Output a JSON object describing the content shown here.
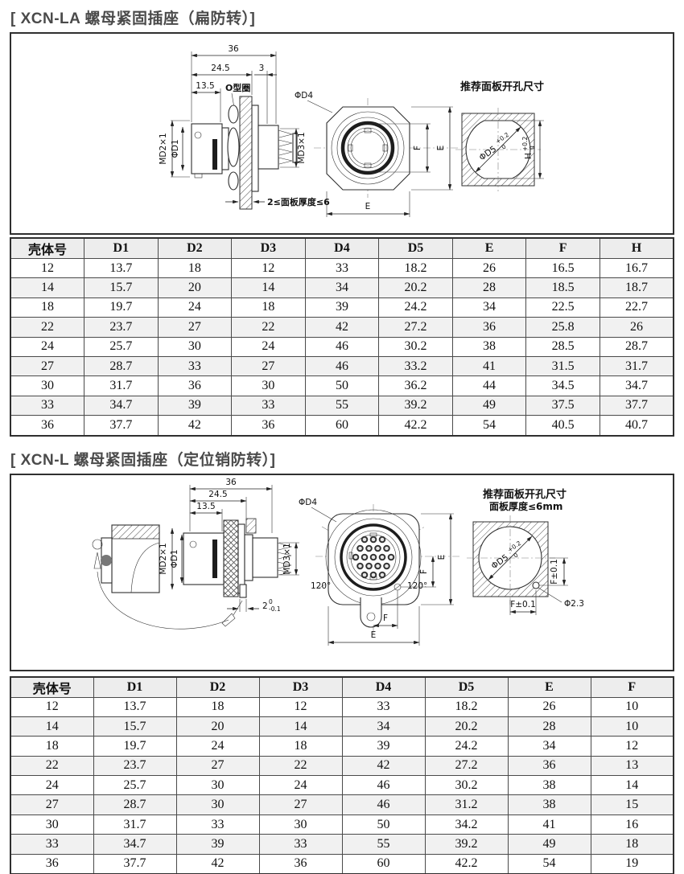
{
  "meta": {
    "page_bg": "#ffffff",
    "line_color": "#2f2f2f",
    "title_color": "#4a4a4a",
    "table_header_bg": "#ededed",
    "table_alt_row_bg": "#f1f1f1"
  },
  "section1": {
    "title": "[ XCN-LA 螺母紧固插座（扁防转）]",
    "side": {
      "dim36": "36",
      "dim245": "24.5",
      "dim3": "3",
      "dim135": "13.5",
      "oring": "O型圈",
      "md2": "MD2×1",
      "d1": "ΦD1",
      "md3": "MD3×1",
      "panel_note": "2≤面板厚度≤6"
    },
    "front": {
      "d4": "ΦD4",
      "f": "F",
      "e_side": "E",
      "e_bottom": "E"
    },
    "cutout": {
      "title": "推荐面板开孔尺寸",
      "d5": "ΦD5",
      "d5_sup": "+0.2",
      "d5_sub": "0",
      "h": "H",
      "h_sup": "+0.2",
      "h_sub": "0"
    },
    "table": {
      "headers": [
        "壳体号",
        "D1",
        "D2",
        "D3",
        "D4",
        "D5",
        "E",
        "F",
        "H"
      ],
      "rows": [
        [
          "12",
          "13.7",
          "18",
          "12",
          "33",
          "18.2",
          "26",
          "16.5",
          "16.7"
        ],
        [
          "14",
          "15.7",
          "20",
          "14",
          "34",
          "20.2",
          "28",
          "18.5",
          "18.7"
        ],
        [
          "18",
          "19.7",
          "24",
          "18",
          "39",
          "24.2",
          "34",
          "22.5",
          "22.7"
        ],
        [
          "22",
          "23.7",
          "27",
          "22",
          "42",
          "27.2",
          "36",
          "25.8",
          "26"
        ],
        [
          "24",
          "25.7",
          "30",
          "24",
          "46",
          "30.2",
          "38",
          "28.5",
          "28.7"
        ],
        [
          "27",
          "28.7",
          "33",
          "27",
          "46",
          "33.2",
          "41",
          "31.5",
          "31.7"
        ],
        [
          "30",
          "31.7",
          "36",
          "30",
          "50",
          "36.2",
          "44",
          "34.5",
          "34.7"
        ],
        [
          "33",
          "34.7",
          "39",
          "33",
          "55",
          "39.2",
          "49",
          "37.5",
          "37.7"
        ],
        [
          "36",
          "37.7",
          "42",
          "36",
          "60",
          "42.2",
          "54",
          "40.5",
          "40.7"
        ]
      ]
    }
  },
  "section2": {
    "title": "[ XCN-L 螺母紧固插座（定位销防转）]",
    "side": {
      "dim36": "36",
      "dim245": "24.5",
      "dim135": "13.5",
      "md2": "MD2×1",
      "d1": "ΦD1",
      "md3": "MD3×1",
      "pin": "2",
      "pin_sup": "0",
      "pin_sub": "-0.1"
    },
    "front": {
      "d4": "ΦD4",
      "angle_l": "120°",
      "angle_r": "120°",
      "e_side": "E",
      "f_side": "F",
      "f_bottom": "F",
      "e_bottom": "E"
    },
    "cutout": {
      "title1": "推荐面板开孔尺寸",
      "title2": "面板厚度≤6mm",
      "d5": "ΦD5",
      "d5_sup": "+0.2",
      "d5_sub": "0",
      "f_v": "F±0.1",
      "f_h": "F±0.1",
      "hole": "Φ2.3"
    },
    "table": {
      "headers": [
        "壳体号",
        "D1",
        "D2",
        "D3",
        "D4",
        "D5",
        "E",
        "F"
      ],
      "rows": [
        [
          "12",
          "13.7",
          "18",
          "12",
          "33",
          "18.2",
          "26",
          "10"
        ],
        [
          "14",
          "15.7",
          "20",
          "14",
          "34",
          "20.2",
          "28",
          "10"
        ],
        [
          "18",
          "19.7",
          "24",
          "18",
          "39",
          "24.2",
          "34",
          "12"
        ],
        [
          "22",
          "23.7",
          "27",
          "22",
          "42",
          "27.2",
          "36",
          "13"
        ],
        [
          "24",
          "25.7",
          "30",
          "24",
          "46",
          "30.2",
          "38",
          "14"
        ],
        [
          "27",
          "28.7",
          "30",
          "27",
          "46",
          "31.2",
          "38",
          "15"
        ],
        [
          "30",
          "31.7",
          "33",
          "30",
          "50",
          "34.2",
          "41",
          "16"
        ],
        [
          "33",
          "34.7",
          "39",
          "33",
          "55",
          "39.2",
          "49",
          "18"
        ],
        [
          "36",
          "37.7",
          "42",
          "36",
          "60",
          "42.2",
          "54",
          "19"
        ]
      ]
    }
  }
}
